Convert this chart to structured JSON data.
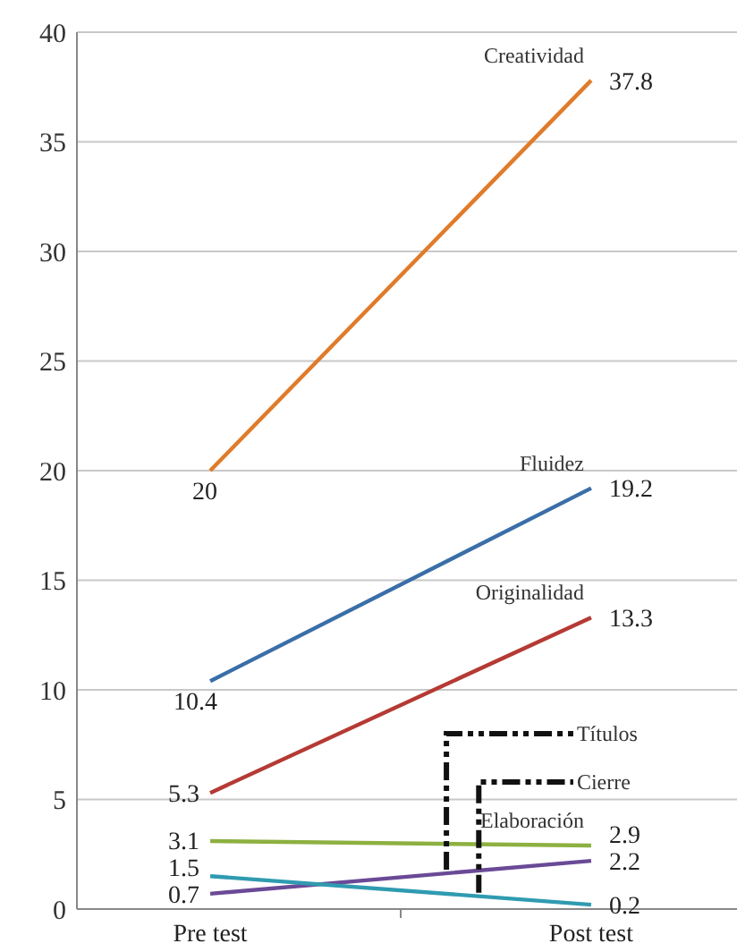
{
  "chart_data": {
    "type": "line",
    "categories": [
      "Pre test",
      "Post test"
    ],
    "series": [
      {
        "name": "Creatividad",
        "color": "#e07b2a",
        "values": [
          20,
          37.8
        ]
      },
      {
        "name": "Fluidez",
        "color": "#3a6ea8",
        "values": [
          10.4,
          19.2
        ]
      },
      {
        "name": "Originalidad",
        "color": "#b53a34",
        "values": [
          5.3,
          13.3
        ]
      },
      {
        "name": "Elaboración",
        "color": "#8db040",
        "values": [
          3.1,
          2.9
        ]
      },
      {
        "name": "Títulos",
        "color": "#6a4a96",
        "values": [
          0.7,
          2.2
        ]
      },
      {
        "name": "Cierre",
        "color": "#2f9bb0",
        "values": [
          1.5,
          0.2
        ]
      }
    ],
    "ylim": [
      0,
      40
    ],
    "yticks": [
      0,
      5,
      10,
      15,
      20,
      25,
      30,
      35,
      40
    ],
    "grid": "y",
    "data_labels": true,
    "marker": "none",
    "line_style": "solid"
  }
}
